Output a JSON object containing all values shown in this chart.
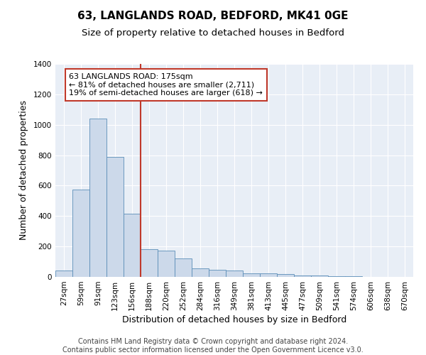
{
  "title_line1": "63, LANGLANDS ROAD, BEDFORD, MK41 0GE",
  "title_line2": "Size of property relative to detached houses in Bedford",
  "xlabel": "Distribution of detached houses by size in Bedford",
  "ylabel": "Number of detached properties",
  "categories": [
    "27sqm",
    "59sqm",
    "91sqm",
    "123sqm",
    "156sqm",
    "188sqm",
    "220sqm",
    "252sqm",
    "284sqm",
    "316sqm",
    "349sqm",
    "381sqm",
    "413sqm",
    "445sqm",
    "477sqm",
    "509sqm",
    "541sqm",
    "574sqm",
    "606sqm",
    "638sqm",
    "670sqm"
  ],
  "values": [
    40,
    575,
    1040,
    790,
    415,
    180,
    175,
    120,
    55,
    45,
    40,
    25,
    25,
    20,
    10,
    8,
    5,
    3,
    2,
    1,
    1
  ],
  "bar_color": "#ccd9ea",
  "bar_edge_color": "#5b8db8",
  "vline_color": "#c0392b",
  "annotation_line1": "63 LANGLANDS ROAD: 175sqm",
  "annotation_line2": "← 81% of detached houses are smaller (2,711)",
  "annotation_line3": "19% of semi-detached houses are larger (618) →",
  "annotation_box_color": "white",
  "annotation_box_edge": "#c0392b",
  "ylim": [
    0,
    1400
  ],
  "yticks": [
    0,
    200,
    400,
    600,
    800,
    1000,
    1200,
    1400
  ],
  "footer_text": "Contains HM Land Registry data © Crown copyright and database right 2024.\nContains public sector information licensed under the Open Government Licence v3.0.",
  "plot_bg_color": "#e8eef6",
  "grid_color": "#ffffff",
  "title_fontsize": 11,
  "subtitle_fontsize": 9.5,
  "tick_fontsize": 7.5,
  "label_fontsize": 9,
  "footer_fontsize": 7,
  "annotation_fontsize": 8
}
